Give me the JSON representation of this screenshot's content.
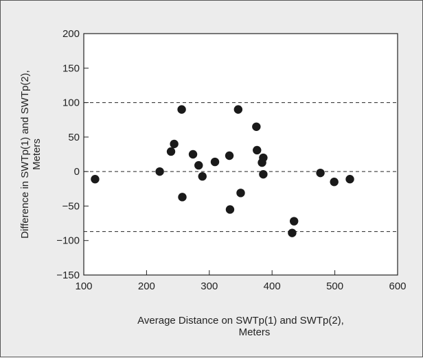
{
  "chart_data": {
    "type": "scatter",
    "title": "",
    "xlabel": [
      "Average Distance on SWTp(1) and SWTp(2),",
      "Meters"
    ],
    "ylabel": [
      "Difference in SWTp(1) and SWTp(2),",
      "Meters"
    ],
    "xlim": [
      100,
      600
    ],
    "ylim": [
      -150,
      200
    ],
    "xticks": [
      100,
      200,
      300,
      400,
      500,
      600
    ],
    "yticks": [
      -150,
      -100,
      -50,
      0,
      50,
      100,
      150,
      200
    ],
    "xtick_labels": [
      "100",
      "200",
      "300",
      "400",
      "500",
      "600"
    ],
    "ytick_labels": [
      "−150",
      "−100",
      "−50",
      "0",
      "50",
      "100",
      "150",
      "200"
    ],
    "grid": false,
    "reference_lines": [
      100,
      0,
      -87
    ],
    "points": [
      {
        "x": 118,
        "y": -11
      },
      {
        "x": 221,
        "y": 0
      },
      {
        "x": 239,
        "y": 29
      },
      {
        "x": 244,
        "y": 40
      },
      {
        "x": 256,
        "y": 90
      },
      {
        "x": 257,
        "y": -37
      },
      {
        "x": 274,
        "y": 25
      },
      {
        "x": 283,
        "y": 9
      },
      {
        "x": 289,
        "y": -7
      },
      {
        "x": 309,
        "y": 14
      },
      {
        "x": 332,
        "y": 23
      },
      {
        "x": 333,
        "y": -55
      },
      {
        "x": 346,
        "y": 90
      },
      {
        "x": 350,
        "y": -31
      },
      {
        "x": 375,
        "y": 65
      },
      {
        "x": 376,
        "y": 31
      },
      {
        "x": 384,
        "y": 13
      },
      {
        "x": 386,
        "y": 20
      },
      {
        "x": 386,
        "y": -4
      },
      {
        "x": 432,
        "y": -89
      },
      {
        "x": 435,
        "y": -72
      },
      {
        "x": 477,
        "y": -2
      },
      {
        "x": 499,
        "y": -15
      },
      {
        "x": 524,
        "y": -11
      }
    ]
  },
  "colors": {
    "background": "#ececec",
    "plot_area": "#ffffff",
    "point": "#1a1a1a",
    "axis": "#222222",
    "reference_line": "#222222"
  }
}
